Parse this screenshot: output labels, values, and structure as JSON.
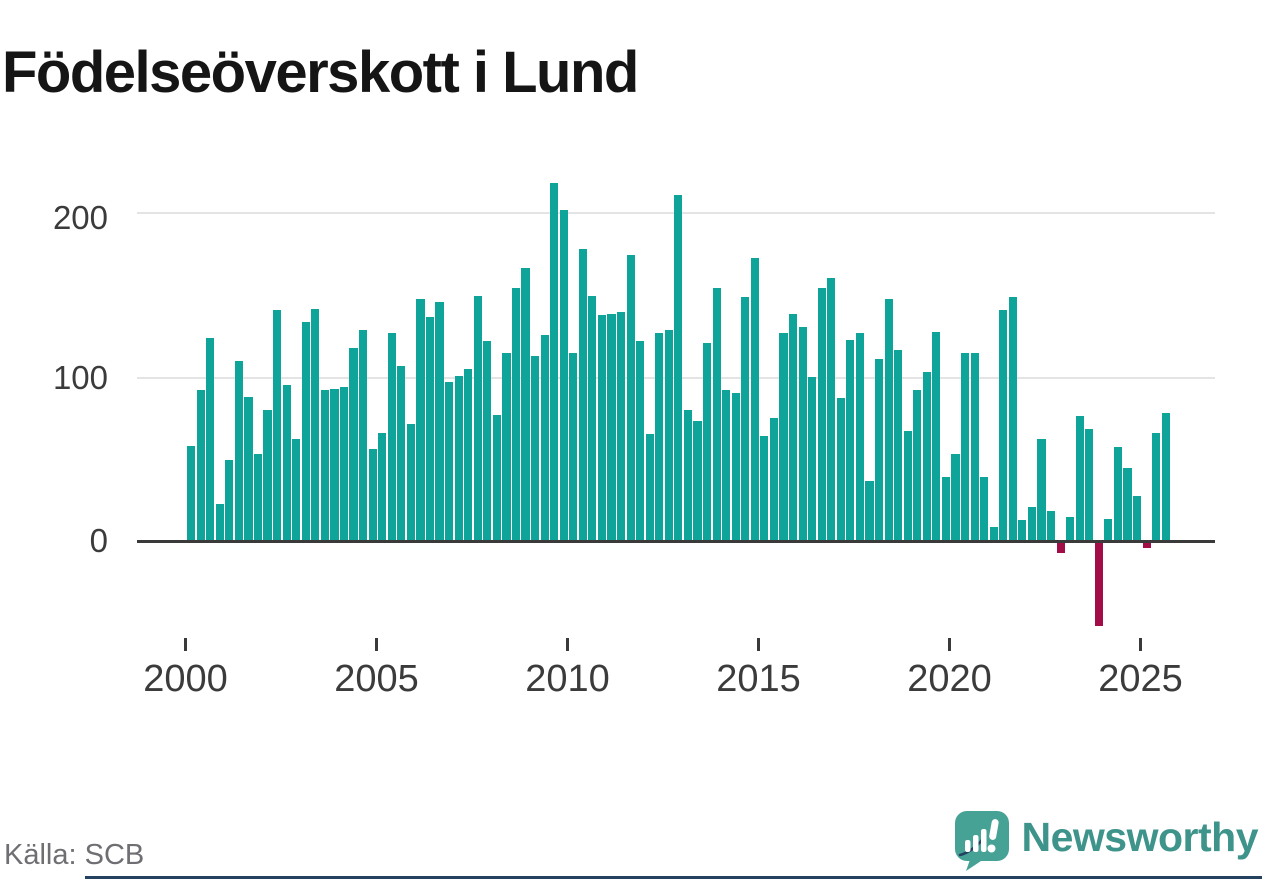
{
  "title": "Födelseöverskott i Lund",
  "footer": {
    "source": "Källa: SCB",
    "brand": "Newsworthy"
  },
  "colors": {
    "bar_positive": "#0ea49a",
    "bar_negative": "#a30d47",
    "grid": "#e4e4e4",
    "zero_axis": "#3a3a3a",
    "axis_label": "#3b3b3b",
    "title": "#151515",
    "source": "#6e6e73",
    "brand_teal": "#3e948b",
    "footer_line_navy": "#24415f"
  },
  "chart_data": {
    "type": "bar",
    "title": "Födelseöverskott i Lund",
    "frequency": "quarterly",
    "start_period": "2000-Q1",
    "end_period": "2025-Q3",
    "x_tick_labels": [
      "2000",
      "2005",
      "2010",
      "2015",
      "2020",
      "2025"
    ],
    "y_tick_labels": [
      "0",
      "100",
      "200"
    ],
    "y_ticks": [
      0,
      100,
      200
    ],
    "ylim": [
      -60,
      230
    ],
    "grid": "horizontal",
    "legend": "none",
    "values": [
      58,
      92,
      124,
      22,
      49,
      110,
      88,
      53,
      80,
      141,
      95,
      62,
      134,
      142,
      92,
      93,
      94,
      118,
      129,
      56,
      66,
      127,
      107,
      71,
      148,
      137,
      146,
      97,
      101,
      105,
      150,
      122,
      77,
      115,
      155,
      167,
      113,
      126,
      219,
      203,
      115,
      179,
      150,
      138,
      139,
      140,
      175,
      122,
      65,
      127,
      129,
      212,
      80,
      73,
      121,
      155,
      92,
      90,
      149,
      173,
      64,
      75,
      127,
      139,
      131,
      100,
      155,
      161,
      87,
      123,
      127,
      36,
      111,
      148,
      117,
      67,
      92,
      103,
      128,
      39,
      53,
      115,
      115,
      39,
      8,
      141,
      149,
      12,
      20,
      62,
      18,
      -6,
      14,
      76,
      68,
      -51,
      13,
      57,
      44,
      27,
      -3,
      66,
      78
    ]
  }
}
